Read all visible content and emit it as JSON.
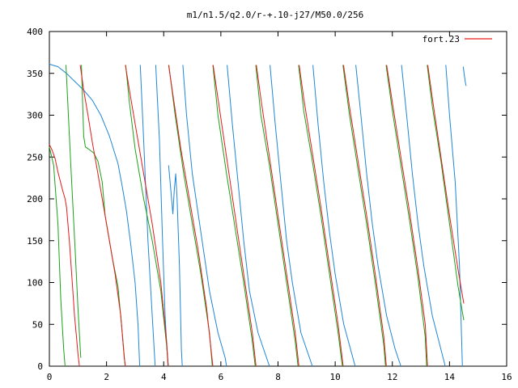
{
  "chart_data": {
    "type": "line",
    "title": "m1/n1.5/q2.0/r-+.10-j27/M50.0/256",
    "xlabel": "",
    "ylabel": "",
    "xlim": [
      0,
      16
    ],
    "ylim": [
      0,
      400
    ],
    "x_ticks": [
      0,
      2,
      4,
      6,
      8,
      10,
      12,
      14,
      16
    ],
    "y_ticks": [
      0,
      50,
      100,
      150,
      200,
      250,
      300,
      350,
      400
    ],
    "grid": false,
    "legend_position": "top-right",
    "legend": [
      "fort.23"
    ],
    "colors": {
      "red": "#e41a1c",
      "green": "#1aa21a",
      "blue": "#1f86d6",
      "frame": "#000000"
    },
    "series": [
      {
        "name": "fort.23",
        "color": "#e41a1c",
        "points": [
          [
            0.0,
            265
          ],
          [
            0.1,
            258
          ],
          [
            0.2,
            248
          ],
          [
            0.3,
            232
          ],
          [
            0.45,
            212
          ],
          [
            0.55,
            200
          ],
          [
            0.6,
            190
          ],
          [
            0.7,
            150
          ],
          [
            0.8,
            100
          ],
          [
            0.88,
            60
          ],
          [
            0.95,
            35
          ],
          [
            1.0,
            15
          ],
          [
            1.05,
            0
          ],
          null,
          [
            1.08,
            360
          ],
          [
            1.2,
            330
          ],
          [
            1.35,
            300
          ],
          [
            1.5,
            268
          ],
          [
            1.7,
            230
          ],
          [
            1.9,
            190
          ],
          [
            2.1,
            150
          ],
          [
            2.3,
            110
          ],
          [
            2.5,
            60
          ],
          [
            2.62,
            10
          ],
          [
            2.66,
            0
          ],
          null,
          [
            2.66,
            360
          ],
          [
            2.8,
            330
          ],
          [
            3.0,
            290
          ],
          [
            3.3,
            230
          ],
          [
            3.6,
            170
          ],
          [
            3.9,
            100
          ],
          [
            4.1,
            30
          ],
          [
            4.16,
            0
          ],
          null,
          [
            4.17,
            360
          ],
          [
            4.3,
            330
          ],
          [
            4.6,
            260
          ],
          [
            4.9,
            200
          ],
          [
            5.2,
            140
          ],
          [
            5.5,
            70
          ],
          [
            5.72,
            0
          ],
          null,
          [
            5.73,
            360
          ],
          [
            5.9,
            320
          ],
          [
            6.2,
            250
          ],
          [
            6.5,
            180
          ],
          [
            6.8,
            110
          ],
          [
            7.1,
            40
          ],
          [
            7.23,
            0
          ],
          null,
          [
            7.24,
            360
          ],
          [
            7.4,
            320
          ],
          [
            7.7,
            250
          ],
          [
            8.0,
            180
          ],
          [
            8.3,
            110
          ],
          [
            8.6,
            40
          ],
          [
            8.73,
            0
          ],
          null,
          [
            8.74,
            360
          ],
          [
            8.9,
            320
          ],
          [
            9.2,
            255
          ],
          [
            9.5,
            190
          ],
          [
            9.8,
            120
          ],
          [
            10.1,
            50
          ],
          [
            10.28,
            0
          ],
          null,
          [
            10.29,
            360
          ],
          [
            10.5,
            310
          ],
          [
            10.8,
            245
          ],
          [
            11.1,
            180
          ],
          [
            11.4,
            110
          ],
          [
            11.7,
            35
          ],
          [
            11.79,
            0
          ],
          null,
          [
            11.8,
            360
          ],
          [
            12.0,
            315
          ],
          [
            12.3,
            250
          ],
          [
            12.6,
            185
          ],
          [
            12.9,
            115
          ],
          [
            13.15,
            50
          ],
          [
            13.23,
            0
          ],
          null,
          [
            13.24,
            360
          ],
          [
            13.4,
            320
          ],
          [
            13.7,
            250
          ],
          [
            14.0,
            180
          ],
          [
            14.3,
            115
          ],
          [
            14.5,
            75
          ]
        ]
      },
      {
        "name": "",
        "color": "#1aa21a",
        "points": [
          [
            0.0,
            262
          ],
          [
            0.15,
            240
          ],
          [
            0.3,
            170
          ],
          [
            0.4,
            80
          ],
          [
            0.5,
            20
          ],
          [
            0.55,
            0
          ],
          null,
          [
            0.58,
            360
          ],
          [
            0.75,
            240
          ],
          [
            0.9,
            140
          ],
          [
            1.0,
            70
          ],
          [
            1.1,
            10
          ],
          null,
          [
            1.12,
            360
          ],
          [
            1.2,
            275
          ],
          [
            1.26,
            262
          ],
          [
            1.35,
            260
          ],
          [
            1.55,
            255
          ],
          [
            1.7,
            245
          ],
          [
            1.85,
            220
          ],
          [
            1.95,
            180
          ],
          [
            2.05,
            160
          ],
          [
            2.2,
            130
          ],
          [
            2.4,
            95
          ],
          [
            2.55,
            40
          ],
          [
            2.65,
            0
          ],
          null,
          [
            2.67,
            360
          ],
          [
            2.8,
            315
          ],
          [
            3.0,
            260
          ],
          [
            3.3,
            200
          ],
          [
            3.6,
            150
          ],
          [
            3.9,
            90
          ],
          [
            4.1,
            25
          ],
          [
            4.16,
            0
          ],
          null,
          [
            4.18,
            360
          ],
          [
            4.4,
            300
          ],
          [
            4.7,
            230
          ],
          [
            5.0,
            170
          ],
          [
            5.3,
            110
          ],
          [
            5.6,
            40
          ],
          [
            5.7,
            0
          ],
          null,
          [
            5.72,
            360
          ],
          [
            5.9,
            300
          ],
          [
            6.2,
            230
          ],
          [
            6.5,
            165
          ],
          [
            6.8,
            100
          ],
          [
            7.1,
            30
          ],
          [
            7.2,
            0
          ],
          null,
          [
            7.22,
            360
          ],
          [
            7.4,
            300
          ],
          [
            7.7,
            240
          ],
          [
            8.0,
            170
          ],
          [
            8.3,
            100
          ],
          [
            8.6,
            30
          ],
          [
            8.7,
            0
          ],
          null,
          [
            8.72,
            360
          ],
          [
            8.9,
            305
          ],
          [
            9.2,
            245
          ],
          [
            9.5,
            180
          ],
          [
            9.8,
            110
          ],
          [
            10.1,
            40
          ],
          [
            10.25,
            0
          ],
          null,
          [
            10.27,
            360
          ],
          [
            10.5,
            300
          ],
          [
            10.8,
            235
          ],
          [
            11.1,
            170
          ],
          [
            11.4,
            100
          ],
          [
            11.7,
            25
          ],
          [
            11.76,
            0
          ],
          null,
          [
            11.78,
            360
          ],
          [
            12.0,
            305
          ],
          [
            12.3,
            240
          ],
          [
            12.6,
            175
          ],
          [
            12.9,
            105
          ],
          [
            13.15,
            35
          ],
          [
            13.2,
            0
          ],
          null,
          [
            13.22,
            360
          ],
          [
            13.4,
            310
          ],
          [
            13.7,
            245
          ],
          [
            14.0,
            170
          ],
          [
            14.3,
            95
          ],
          [
            14.5,
            55
          ]
        ]
      },
      {
        "name": "",
        "color": "#1f86d6",
        "points": [
          [
            0.0,
            361
          ],
          [
            0.3,
            358
          ],
          [
            0.6,
            350
          ],
          [
            0.9,
            340
          ],
          [
            1.2,
            330
          ],
          [
            1.5,
            318
          ],
          [
            1.8,
            300
          ],
          [
            2.1,
            275
          ],
          [
            2.4,
            242
          ],
          [
            2.55,
            215
          ],
          [
            2.7,
            185
          ],
          [
            2.85,
            145
          ],
          [
            3.0,
            100
          ],
          [
            3.1,
            50
          ],
          [
            3.16,
            0
          ],
          null,
          [
            3.18,
            360
          ],
          [
            3.3,
            270
          ],
          [
            3.45,
            150
          ],
          [
            3.6,
            60
          ],
          [
            3.7,
            0
          ],
          null,
          [
            3.72,
            360
          ],
          [
            3.85,
            270
          ],
          [
            3.95,
            160
          ],
          [
            4.05,
            60
          ],
          [
            4.15,
            0
          ],
          null,
          [
            4.17,
            240
          ],
          [
            4.25,
            210
          ],
          [
            4.32,
            182
          ],
          [
            4.37,
            210
          ],
          [
            4.42,
            230
          ],
          [
            4.47,
            200
          ],
          [
            4.55,
            120
          ],
          [
            4.62,
            20
          ],
          [
            4.65,
            0
          ],
          null,
          [
            4.67,
            360
          ],
          [
            4.8,
            300
          ],
          [
            5.0,
            230
          ],
          [
            5.3,
            160
          ],
          [
            5.6,
            90
          ],
          [
            5.9,
            40
          ],
          [
            6.15,
            10
          ],
          [
            6.2,
            0
          ],
          null,
          [
            6.22,
            360
          ],
          [
            6.4,
            290
          ],
          [
            6.6,
            220
          ],
          [
            6.8,
            150
          ],
          [
            7.0,
            90
          ],
          [
            7.3,
            40
          ],
          [
            7.7,
            0
          ],
          null,
          [
            7.72,
            360
          ],
          [
            7.9,
            290
          ],
          [
            8.1,
            220
          ],
          [
            8.3,
            150
          ],
          [
            8.5,
            100
          ],
          [
            8.8,
            40
          ],
          [
            9.2,
            0
          ],
          null,
          [
            9.22,
            360
          ],
          [
            9.4,
            290
          ],
          [
            9.6,
            220
          ],
          [
            9.8,
            160
          ],
          [
            10.0,
            110
          ],
          [
            10.3,
            50
          ],
          [
            10.7,
            0
          ],
          null,
          [
            10.72,
            360
          ],
          [
            10.9,
            300
          ],
          [
            11.1,
            230
          ],
          [
            11.3,
            170
          ],
          [
            11.5,
            120
          ],
          [
            11.8,
            60
          ],
          [
            12.1,
            20
          ],
          [
            12.3,
            0
          ],
          null,
          [
            12.32,
            360
          ],
          [
            12.5,
            300
          ],
          [
            12.7,
            230
          ],
          [
            12.9,
            170
          ],
          [
            13.1,
            120
          ],
          [
            13.4,
            60
          ],
          [
            13.7,
            20
          ],
          [
            13.85,
            0
          ],
          null,
          [
            13.87,
            360
          ],
          [
            14.0,
            300
          ],
          [
            14.2,
            220
          ],
          [
            14.35,
            120
          ],
          [
            14.45,
            0
          ],
          null,
          [
            14.48,
            358
          ],
          [
            14.55,
            340
          ],
          [
            14.58,
            335
          ]
        ]
      }
    ]
  }
}
